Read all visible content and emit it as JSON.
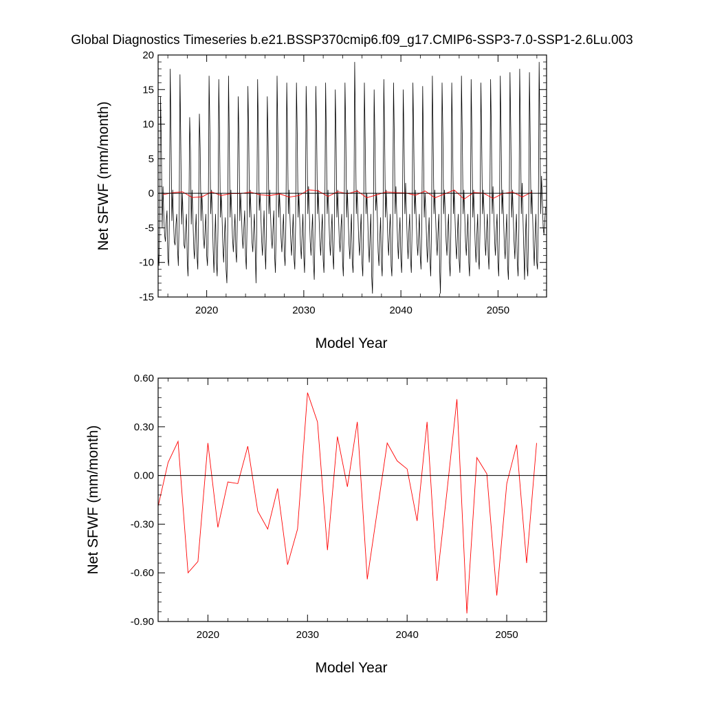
{
  "page_title": "Global Diagnostics Timeseries b.e21.BSSP370cmip6.f09_g17.CMIP6-SSP3-7.0-SSP1-2.6Lu.003",
  "colors": {
    "monthly": "#000000",
    "annual": "#ff0000",
    "zero_line": "#000000",
    "background": "#ffffff"
  },
  "chart_data": [
    {
      "type": "line",
      "title": "Global Diagnostics Timeseries b.e21.BSSP370cmip6.f09_g17.CMIP6-SSP3-7.0-SSP1-2.6Lu.003",
      "xlabel": "Model Year",
      "ylabel": "Net SFWF (mm/month)",
      "xlim": [
        2015,
        2055
      ],
      "ylim": [
        -15,
        20
      ],
      "xticks": [
        2020,
        2030,
        2040,
        2050
      ],
      "xtick_labels": [
        "2020",
        "2030",
        "2040",
        "2050"
      ],
      "yticks": [
        -15,
        -10,
        -5,
        0,
        5,
        10,
        15,
        20
      ],
      "ytick_labels": [
        "-15",
        "-10",
        "-5",
        "0",
        "5",
        "10",
        "15",
        "20"
      ],
      "grid": false,
      "reference_line": 0,
      "series": [
        {
          "color": "#000000",
          "x_start": 2015.0,
          "x_step": 0.0833,
          "values": [
            -8.5,
            -10.5,
            -3.5,
            14.0,
            7.0,
            -5.0,
            1.0,
            -3.0,
            -6.0,
            -7.0,
            -4.0,
            -2.5,
            -9.5,
            -10.5,
            -3.0,
            18.0,
            8.0,
            -4.0,
            0.5,
            -4.0,
            -7.0,
            -7.5,
            -4.5,
            -3.0,
            -8.0,
            -10.5,
            -3.5,
            17.2,
            8.0,
            -4.5,
            0.0,
            -4.0,
            -7.5,
            -8.0,
            -5.0,
            -3.0,
            -10.0,
            -12.0,
            -4.0,
            11.0,
            6.0,
            -4.5,
            0.5,
            -3.5,
            -8.0,
            -9.5,
            -6.0,
            -3.0,
            -9.0,
            -11.0,
            -4.0,
            11.5,
            6.5,
            -4.0,
            0.0,
            -2.5,
            -6.5,
            -8.0,
            -5.5,
            -3.0,
            -9.0,
            -10.5,
            -4.5,
            17.0,
            9.0,
            -3.0,
            0.5,
            -2.5,
            -8.0,
            -11.5,
            -6.5,
            -3.0,
            -10.0,
            -12.0,
            -5.0,
            16.5,
            8.5,
            -3.5,
            0.0,
            -3.5,
            -7.5,
            -10.0,
            -6.0,
            -3.5,
            -11.0,
            -13.0,
            -5.5,
            17.0,
            8.0,
            -3.5,
            0.5,
            -3.0,
            -6.5,
            -8.5,
            -5.5,
            -3.0,
            -8.5,
            -10.0,
            -3.5,
            14.0,
            7.5,
            -4.0,
            0.0,
            -3.0,
            -6.5,
            -8.0,
            -5.0,
            -2.5,
            -9.0,
            -11.0,
            -4.0,
            15.5,
            8.0,
            -3.5,
            0.5,
            -3.5,
            -7.0,
            -8.5,
            -5.5,
            -3.0,
            -8.0,
            -13.0,
            -5.0,
            16.5,
            8.5,
            -2.5,
            0.0,
            -3.0,
            -7.0,
            -9.0,
            -5.5,
            -2.5,
            -8.0,
            -11.0,
            -4.5,
            14.0,
            7.5,
            -3.0,
            0.5,
            -3.0,
            -6.5,
            -8.0,
            -5.0,
            -2.5,
            -9.0,
            -11.5,
            -4.5,
            17.0,
            9.0,
            -3.5,
            0.0,
            -3.0,
            -6.5,
            -8.5,
            -5.5,
            -3.0,
            -9.0,
            -10.5,
            -4.0,
            16.0,
            8.0,
            -3.0,
            0.5,
            -3.5,
            -7.0,
            -9.0,
            -6.0,
            -3.0,
            -9.5,
            -11.0,
            -4.5,
            16.0,
            8.5,
            -3.5,
            0.0,
            -3.5,
            -7.5,
            -9.5,
            -6.0,
            -3.0,
            -9.0,
            -11.5,
            -4.5,
            15.5,
            9.0,
            -3.0,
            1.0,
            -3.0,
            -7.0,
            -9.0,
            -5.5,
            -3.0,
            -10.0,
            -12.5,
            -5.0,
            15.5,
            8.5,
            -3.0,
            0.5,
            -3.5,
            -7.0,
            -9.0,
            -5.5,
            -3.0,
            -9.5,
            -11.5,
            -4.5,
            16.0,
            8.0,
            -3.0,
            0.5,
            -3.0,
            -7.0,
            -9.0,
            -5.5,
            -3.0,
            -9.0,
            -11.0,
            -4.0,
            15.0,
            7.5,
            -3.5,
            0.5,
            -3.5,
            -7.0,
            -8.5,
            -5.0,
            -3.0,
            -10.0,
            -12.0,
            -4.5,
            16.0,
            8.5,
            -3.5,
            0.5,
            -3.5,
            -7.5,
            -9.5,
            -6.0,
            -3.0,
            -10.0,
            -11.5,
            -5.0,
            19.0,
            9.0,
            -3.0,
            0.5,
            -3.0,
            -7.0,
            -9.0,
            -5.5,
            -3.0,
            -10.0,
            -12.0,
            -5.0,
            16.0,
            8.0,
            -3.0,
            0.0,
            -3.0,
            -7.5,
            -10.0,
            -6.0,
            -3.0,
            -12.0,
            -14.5,
            -5.5,
            15.0,
            8.0,
            -2.5,
            0.0,
            -3.5,
            -8.5,
            -10.5,
            -6.5,
            -3.5,
            -10.0,
            -12.0,
            -5.0,
            16.5,
            8.0,
            -3.5,
            0.5,
            -3.0,
            -7.0,
            -9.0,
            -5.5,
            -3.0,
            -10.5,
            -12.0,
            -4.5,
            16.0,
            8.0,
            -3.0,
            1.0,
            -3.0,
            -7.0,
            -9.5,
            -6.0,
            -3.5,
            -9.5,
            -11.5,
            -5.0,
            15.0,
            7.5,
            -3.0,
            1.5,
            -3.0,
            -7.0,
            -9.5,
            -5.5,
            -3.0,
            -9.5,
            -11.5,
            -4.5,
            16.0,
            8.0,
            -3.0,
            0.5,
            -3.5,
            -7.0,
            -9.0,
            -6.0,
            -3.0,
            -9.0,
            -11.0,
            -4.5,
            15.5,
            7.5,
            -3.5,
            0.0,
            -3.0,
            -7.5,
            -10.0,
            -6.0,
            -3.5,
            -9.5,
            -12.0,
            -5.0,
            17.0,
            8.5,
            -3.0,
            0.5,
            -3.5,
            -7.0,
            -9.0,
            -5.5,
            -3.0,
            -11.0,
            -14.5,
            -6.0,
            16.0,
            8.5,
            -3.0,
            0.5,
            -3.0,
            -7.0,
            -9.0,
            -5.5,
            -3.0,
            -10.0,
            -12.0,
            -5.0,
            16.0,
            8.0,
            -3.0,
            0.5,
            -3.5,
            -7.5,
            -9.5,
            -6.0,
            -3.0,
            -9.5,
            -11.5,
            -4.5,
            17.0,
            8.5,
            -3.0,
            0.5,
            -3.0,
            -7.0,
            -9.0,
            -5.5,
            -3.0,
            -10.0,
            -12.0,
            -5.0,
            16.5,
            8.0,
            -3.5,
            0.5,
            -3.5,
            -7.5,
            -10.0,
            -6.0,
            -3.0,
            -9.5,
            -11.0,
            -4.5,
            16.0,
            8.0,
            -3.0,
            0.5,
            -3.0,
            -7.0,
            -9.0,
            -5.5,
            -3.0,
            -9.0,
            -11.0,
            -4.0,
            16.5,
            8.5,
            -3.0,
            1.0,
            -3.0,
            -7.0,
            -9.0,
            -5.5,
            -3.0,
            -10.0,
            -12.0,
            -4.5,
            17.0,
            8.5,
            -3.0,
            0.5,
            -3.5,
            -7.5,
            -9.5,
            -6.0,
            -3.0,
            -10.5,
            -12.5,
            -5.0,
            17.5,
            9.0,
            -3.5,
            0.5,
            -3.0,
            -7.0,
            -9.5,
            -5.5,
            -3.0,
            -10.0,
            -12.0,
            -5.0,
            18.0,
            9.0,
            -3.0,
            1.5,
            -3.5,
            -8.0,
            -12.5,
            -6.5,
            -3.0,
            -10.5,
            -12.0,
            -5.0,
            17.5,
            8.5,
            -3.0,
            0.5,
            -3.5,
            -7.5,
            -10.5,
            -6.0,
            -3.0,
            -10.0,
            -11.0,
            -4.0,
            19.0,
            9.0,
            -3.0,
            2.5,
            -1.0,
            -5.0,
            -6.0,
            -4.0,
            -2.0
          ]
        },
        {
          "color": "#ff0000",
          "x_start": 2015.5,
          "x_step": 1,
          "values": [
            -0.19,
            0.08,
            0.21,
            -0.6,
            -0.53,
            0.2,
            -0.32,
            -0.04,
            -0.05,
            0.18,
            -0.22,
            -0.33,
            -0.08,
            -0.55,
            -0.33,
            0.51,
            0.33,
            -0.46,
            0.24,
            -0.07,
            0.33,
            -0.64,
            -0.22,
            0.2,
            0.09,
            0.04,
            -0.28,
            0.33,
            -0.65,
            -0.1,
            0.47,
            -0.85,
            0.11,
            0.01,
            -0.74,
            -0.05,
            0.19,
            -0.54,
            0.2
          ]
        }
      ]
    },
    {
      "type": "line",
      "xlabel": "Model Year",
      "ylabel": "Net SFWF (mm/month)",
      "xlim": [
        2015,
        2054
      ],
      "ylim": [
        -0.9,
        0.6
      ],
      "xticks": [
        2020,
        2030,
        2040,
        2050
      ],
      "xtick_labels": [
        "2020",
        "2030",
        "2040",
        "2050"
      ],
      "yticks": [
        -0.9,
        -0.6,
        -0.3,
        0.0,
        0.3,
        0.6
      ],
      "ytick_labels": [
        "-0.90",
        "-0.60",
        "-0.30",
        "0.00",
        "0.30",
        "0.60"
      ],
      "grid": false,
      "reference_line": 0,
      "series": [
        {
          "color": "#ff0000",
          "x_start": 2015.0,
          "x_step": 1,
          "values": [
            -0.19,
            0.08,
            0.21,
            -0.6,
            -0.53,
            0.2,
            -0.32,
            -0.04,
            -0.05,
            0.18,
            -0.22,
            -0.33,
            -0.08,
            -0.55,
            -0.33,
            0.51,
            0.33,
            -0.46,
            0.24,
            -0.07,
            0.33,
            -0.64,
            -0.22,
            0.2,
            0.09,
            0.04,
            -0.28,
            0.33,
            -0.65,
            -0.1,
            0.47,
            -0.85,
            0.11,
            0.01,
            -0.74,
            -0.05,
            0.19,
            -0.54,
            0.2
          ]
        }
      ]
    }
  ]
}
